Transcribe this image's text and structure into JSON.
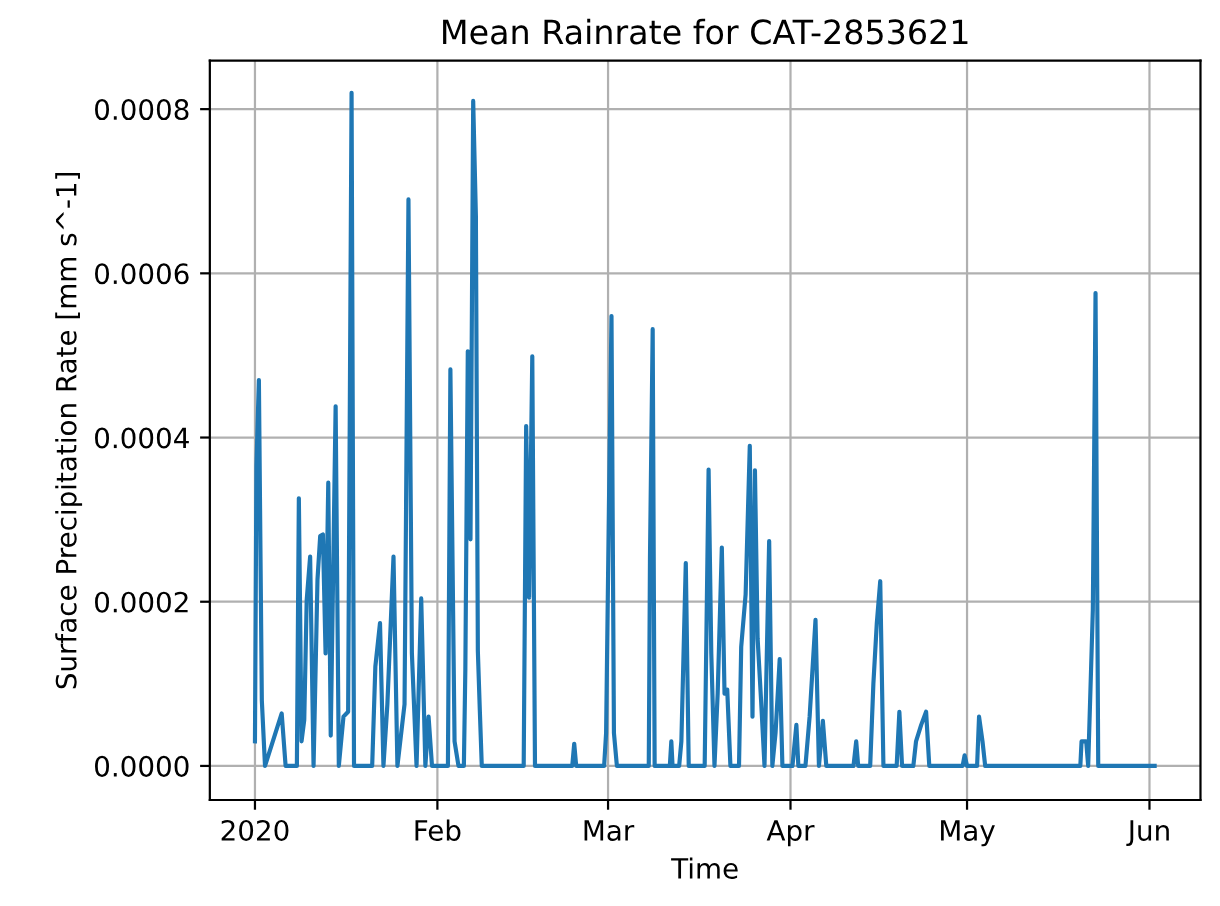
{
  "chart_data": {
    "type": "line",
    "title": "Mean Rainrate for CAT-2853621",
    "xlabel": "Time",
    "ylabel": "Surface Precipitation Rate [mm s^-1]",
    "x": [
      "2020-01-01T00:00",
      "2020-01-01T06:00",
      "2020-01-01T16:00",
      "2020-01-02T04:00",
      "2020-01-02T17:00",
      "2020-01-05T13:00",
      "2020-01-06T05:00",
      "2020-01-08T03:00",
      "2020-01-08T11:00",
      "2020-01-08T22:00",
      "2020-01-09T09:00",
      "2020-01-09T19:00",
      "2020-01-10T09:00",
      "2020-01-10T23:00",
      "2020-01-11T15:00",
      "2020-01-12T02:00",
      "2020-01-12T13:00",
      "2020-01-13T00:00",
      "2020-01-13T11:00",
      "2020-01-13T21:00",
      "2020-01-14T17:00",
      "2020-01-15T06:00",
      "2020-01-16T01:00",
      "2020-01-16T20:00",
      "2020-01-17T10:00",
      "2020-01-17T20:00",
      "2020-01-20T22:00",
      "2020-01-21T11:00",
      "2020-01-22T06:00",
      "2020-01-22T20:00",
      "2020-01-23T12:00",
      "2020-01-24T13:00",
      "2020-01-25T05:00",
      "2020-01-26T10:00",
      "2020-01-27T02:00",
      "2020-01-27T16:00",
      "2020-01-28T11:00",
      "2020-01-29T06:00",
      "2020-01-29T23:00",
      "2020-01-30T12:00",
      "2020-01-31T02:00",
      "2020-02-02T19:00",
      "2020-02-03T05:00",
      "2020-02-03T22:00",
      "2020-02-04T14:00",
      "2020-02-05T12:00",
      "2020-02-05T18:00",
      "2020-02-06T04:00",
      "2020-02-06T15:00",
      "2020-02-07T02:00",
      "2020-02-07T13:00",
      "2020-02-07T21:00",
      "2020-02-08T05:00",
      "2020-02-08T13:00",
      "2020-02-15T16:00",
      "2020-02-16T02:00",
      "2020-02-16T14:00",
      "2020-02-17T03:00",
      "2020-02-17T14:00",
      "2020-02-23T22:00",
      "2020-02-24T06:00",
      "2020-02-24T14:00",
      "2020-02-29T08:00",
      "2020-02-29T16:00",
      "2020-03-01T06:00",
      "2020-03-01T14:00",
      "2020-03-02T00:00",
      "2020-03-02T12:00",
      "2020-03-07T22:00",
      "2020-03-08T03:00",
      "2020-03-08T14:00",
      "2020-03-08T22:00",
      "2020-03-11T12:00",
      "2020-03-11T18:00",
      "2020-03-11T23:00",
      "2020-03-13T02:00",
      "2020-03-13T11:00",
      "2020-03-14T05:00",
      "2020-03-14T17:00",
      "2020-03-17T10:00",
      "2020-03-18T02:00",
      "2020-03-18T13:00",
      "2020-03-19T02:00",
      "2020-03-19T15:00",
      "2020-03-20T08:00",
      "2020-03-20T19:00",
      "2020-03-21T06:00",
      "2020-03-21T19:00",
      "2020-03-23T06:00",
      "2020-03-23T15:00",
      "2020-03-24T09:00",
      "2020-03-25T02:00",
      "2020-03-25T13:00",
      "2020-03-25T23:00",
      "2020-03-26T10:00",
      "2020-03-27T00:00",
      "2020-03-27T14:00",
      "2020-03-28T09:00",
      "2020-03-28T22:00",
      "2020-03-29T11:00",
      "2020-03-30T04:00",
      "2020-03-30T15:00",
      "2020-04-01T08:00",
      "2020-04-02T00:00",
      "2020-04-02T08:00",
      "2020-04-03T13:00",
      "2020-04-04T06:00",
      "2020-04-05T06:00",
      "2020-04-05T20:00",
      "2020-04-06T12:00",
      "2020-04-07T02:00",
      "2020-04-11T17:00",
      "2020-04-12T04:00",
      "2020-04-12T12:00",
      "2020-04-14T13:00",
      "2020-04-15T02:00",
      "2020-04-15T16:00",
      "2020-04-16T06:00",
      "2020-04-16T19:00",
      "2020-04-19T01:00",
      "2020-04-19T12:00",
      "2020-04-19T23:00",
      "2020-04-21T21:00",
      "2020-04-22T08:00",
      "2020-04-23T05:00",
      "2020-04-24T01:00",
      "2020-04-24T14:00",
      "2020-04-30T06:00",
      "2020-04-30T14:00",
      "2020-05-01T00:00",
      "2020-05-02T17:00",
      "2020-05-03T01:00",
      "2020-05-03T15:00",
      "2020-05-04T02:00",
      "2020-05-20T06:00",
      "2020-05-20T11:00",
      "2020-05-21T06:00",
      "2020-05-21T14:00",
      "2020-05-22T09:00",
      "2020-05-22T20:00",
      "2020-05-23T07:00",
      "2020-06-01T21:00"
    ],
    "series": [
      {
        "color": "#1f77b4",
        "values": [
          3e-05,
          0.000366,
          0.00047,
          8e-05,
          0,
          6.4e-05,
          0,
          0,
          0.000326,
          3e-05,
          5.6e-05,
          0.000202,
          0.000255,
          0,
          0.000227,
          0.00028,
          0.000282,
          0.000137,
          0.000345,
          3.7e-05,
          0.000438,
          0,
          6e-05,
          6.6e-05,
          0.00082,
          0,
          0,
          0.000121,
          0.000174,
          0,
          7.5e-05,
          0.000255,
          0,
          7.5e-05,
          0.00069,
          0.000137,
          0,
          0.000204,
          0,
          6e-05,
          0,
          0,
          0.000483,
          3e-05,
          0,
          0,
          0.000118,
          0.000505,
          0.000276,
          0.00081,
          0.00067,
          0.00014,
          6.8e-05,
          0,
          0,
          0.000414,
          0.000205,
          0.000499,
          0,
          0,
          2.7e-05,
          0,
          0,
          4e-05,
          0.000373,
          0.000548,
          4e-05,
          0,
          0,
          0.000255,
          0.000532,
          0,
          0,
          3e-05,
          0,
          0,
          3e-05,
          0.000247,
          0,
          0,
          0.000361,
          0.000137,
          0,
          8.8e-05,
          0.000266,
          8.8e-05,
          9.3e-05,
          0,
          0,
          0.000145,
          0.000209,
          0.00039,
          6e-05,
          0.00036,
          0.000155,
          8e-05,
          0,
          0.000274,
          0,
          4e-05,
          0.00013,
          0,
          0,
          5e-05,
          0,
          0,
          6e-05,
          0.000178,
          0,
          5.5e-05,
          0,
          0,
          3e-05,
          0,
          0,
          0.0001,
          0.000174,
          0.000225,
          0,
          0,
          6.6e-05,
          0,
          0,
          3e-05,
          5e-05,
          6.6e-05,
          0,
          0,
          1.3e-05,
          0,
          0,
          6e-05,
          3e-05,
          0,
          0,
          3e-05,
          3e-05,
          0,
          0.00019,
          0.000576,
          0,
          0
        ]
      }
    ],
    "xlim": [
      "2019-12-24T08:00",
      "2020-06-09T16:00"
    ],
    "xticks": [
      {
        "value": "2020-01-01",
        "label": "2020"
      },
      {
        "value": "2020-02-01",
        "label": "Feb"
      },
      {
        "value": "2020-03-01",
        "label": "Mar"
      },
      {
        "value": "2020-04-01",
        "label": "Apr"
      },
      {
        "value": "2020-05-01",
        "label": "May"
      },
      {
        "value": "2020-06-01",
        "label": "Jun"
      }
    ],
    "ylim": [
      -4.15e-05,
      0.000859
    ],
    "yticks": [
      {
        "value": 0,
        "label": "0.0000"
      },
      {
        "value": 0.0002,
        "label": "0.0002"
      },
      {
        "value": 0.0004,
        "label": "0.0004"
      },
      {
        "value": 0.0006,
        "label": "0.0006"
      },
      {
        "value": 0.0008,
        "label": "0.0008"
      }
    ],
    "grid": true
  }
}
